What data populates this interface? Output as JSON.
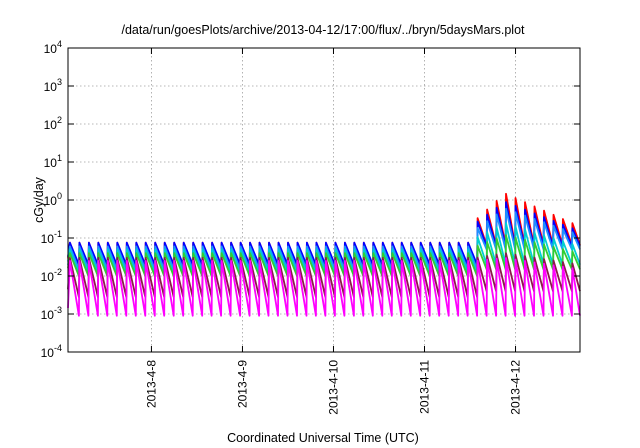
{
  "chart_data": {
    "type": "line",
    "title": "/data/run/goesPlots/archive/2013-04-12/17:00/flux/../bryn/5daysMars.plot",
    "xlabel": "Coordinated Universal Time (UTC)",
    "ylabel": "cGy/day",
    "xlim": [
      "2013-04-07T02:00",
      "2013-04-12T17:00"
    ],
    "yscale": "log",
    "ylim": [
      0.0001,
      10000
    ],
    "grid": true,
    "legend": "none",
    "x_ticks": [
      {
        "label": "2013-4-8",
        "value": "2013-04-08T00:00"
      },
      {
        "label": "2013-4-9",
        "value": "2013-04-09T00:00"
      },
      {
        "label": "2013-4-10",
        "value": "2013-04-10T00:00"
      },
      {
        "label": "2013-4-11",
        "value": "2013-04-11T00:00"
      },
      {
        "label": "2013-4-12",
        "value": "2013-04-12T00:00"
      }
    ],
    "y_ticks": [
      {
        "base": "10",
        "exp": "-4",
        "value": 0.0001
      },
      {
        "base": "10",
        "exp": "-3",
        "value": 0.001
      },
      {
        "base": "10",
        "exp": "-2",
        "value": 0.01
      },
      {
        "base": "10",
        "exp": "-1",
        "value": 0.1
      },
      {
        "base": "10",
        "exp": "0",
        "value": 1
      },
      {
        "base": "10",
        "exp": "1",
        "value": 10
      },
      {
        "base": "10",
        "exp": "2",
        "value": 100
      },
      {
        "base": "10",
        "exp": "3",
        "value": 1000
      },
      {
        "base": "10",
        "exp": "4",
        "value": 10000
      }
    ],
    "sawtooth_period_hours": 2.5,
    "event_onset": "2013-04-11T13:30",
    "series": [
      {
        "color": "#ff0000",
        "peak_pre": 0.075,
        "trough_pre": 0.018,
        "peak_post": [
          0.3,
          1.5,
          0.2
        ],
        "trough_post": 0.065
      },
      {
        "color": "#0000ff",
        "peak_pre": 0.075,
        "trough_pre": 0.02,
        "peak_post": [
          0.25,
          0.9,
          0.15
        ],
        "trough_post": 0.06
      },
      {
        "color": "#1e90ff",
        "peak_pre": 0.06,
        "trough_pre": 0.015,
        "peak_post": [
          0.17,
          0.6,
          0.12
        ],
        "trough_post": 0.05
      },
      {
        "color": "#00ced1",
        "peak_pre": 0.05,
        "trough_pre": 0.012,
        "peak_post": [
          0.1,
          0.25,
          0.06
        ],
        "trough_post": 0.02
      },
      {
        "color": "#32cd32",
        "peak_pre": 0.04,
        "trough_pre": 0.01,
        "peak_post": [
          0.06,
          0.12,
          0.04
        ],
        "trough_post": 0.015
      },
      {
        "color": "#8b1a4a",
        "peak_pre": 0.03,
        "trough_pre": 0.0028,
        "peak_post": [
          0.03,
          0.04,
          0.02
        ],
        "trough_post": 0.004
      },
      {
        "color": "#ff00ff",
        "peak_pre": 0.025,
        "trough_pre": 0.0009,
        "peak_post": [
          0.025,
          0.03,
          0.015
        ],
        "trough_post": 0.0009
      }
    ]
  }
}
